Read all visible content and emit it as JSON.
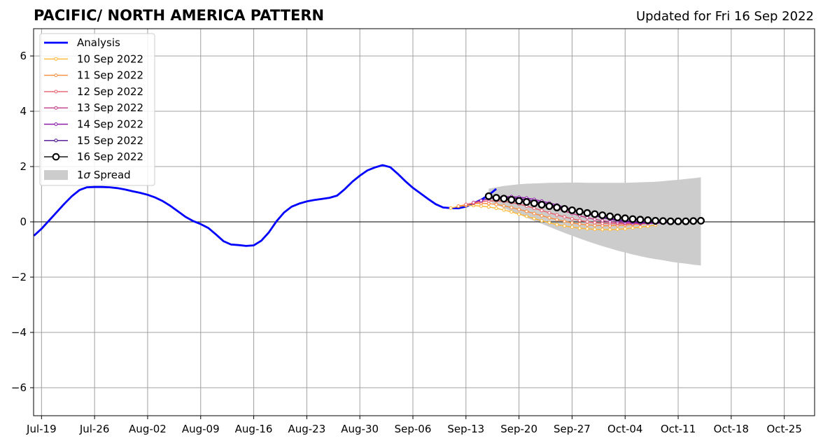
{
  "chart_data": {
    "type": "line",
    "title": "PACIFIC/ NORTH AMERICA PATTERN",
    "subtitle": "Updated for Fri 16 Sep 2022",
    "xlabel": "",
    "ylabel": "",
    "xlim": [
      "2022-07-18",
      "2022-10-29"
    ],
    "ylim": [
      -7,
      7
    ],
    "x_ticks": [
      "Jul-19",
      "Jul-26",
      "Aug-02",
      "Aug-09",
      "Aug-16",
      "Aug-23",
      "Aug-30",
      "Sep-06",
      "Sep-13",
      "Sep-20",
      "Sep-27",
      "Oct-04",
      "Oct-11",
      "Oct-18",
      "Oct-25"
    ],
    "y_ticks": [
      "6",
      "4",
      "2",
      "0",
      "−2",
      "−4",
      "−6"
    ],
    "grid": true,
    "legend_position": "top-left",
    "spread_label_prefix": "1",
    "spread_label_sigma": "σ",
    "spread_label_suffix": " Spread",
    "analysis": {
      "name": "Analysis",
      "color": "#0000ff",
      "start": "2022-07-18",
      "values": [
        -0.5,
        -0.25,
        0.05,
        0.35,
        0.65,
        0.93,
        1.15,
        1.25,
        1.26,
        1.26,
        1.25,
        1.22,
        1.17,
        1.11,
        1.05,
        0.98,
        0.88,
        0.75,
        0.58,
        0.38,
        0.18,
        0.03,
        -0.08,
        -0.22,
        -0.45,
        -0.7,
        -0.82,
        -0.84,
        -0.87,
        -0.85,
        -0.68,
        -0.38,
        0.02,
        0.34,
        0.55,
        0.66,
        0.74,
        0.79,
        0.83,
        0.87,
        0.95,
        1.18,
        1.45,
        1.67,
        1.86,
        1.97,
        2.05,
        1.98,
        1.74,
        1.47,
        1.23,
        1.03,
        0.83,
        0.64,
        0.52,
        0.5,
        0.49,
        0.55,
        0.67,
        0.8,
        0.97,
        1.19
      ]
    },
    "forecasts": [
      {
        "name": "10 Sep 2022",
        "color": "#ffb733",
        "start": "2022-09-11",
        "values": [
          0.5,
          0.56,
          0.59,
          0.59,
          0.57,
          0.54,
          0.49,
          0.43,
          0.36,
          0.28,
          0.2,
          0.12,
          0.04,
          -0.03,
          -0.1,
          -0.15,
          -0.19,
          -0.23,
          -0.25,
          -0.27,
          -0.28,
          -0.28,
          -0.27,
          -0.25,
          -0.22,
          -0.19,
          -0.16,
          -0.12
        ]
      },
      {
        "name": "11 Sep 2022",
        "color": "#fb8c3c",
        "start": "2022-09-12",
        "values": [
          0.57,
          0.62,
          0.66,
          0.67,
          0.66,
          0.63,
          0.58,
          0.52,
          0.45,
          0.38,
          0.3,
          0.22,
          0.15,
          0.08,
          0.02,
          -0.04,
          -0.08,
          -0.11,
          -0.13,
          -0.14,
          -0.14,
          -0.13,
          -0.12,
          -0.1,
          -0.08,
          -0.06,
          -0.04,
          -0.02
        ]
      },
      {
        "name": "12 Sep 2022",
        "color": "#e85f6d",
        "start": "2022-09-13",
        "values": [
          0.63,
          0.68,
          0.73,
          0.76,
          0.76,
          0.74,
          0.7,
          0.64,
          0.57,
          0.49,
          0.41,
          0.33,
          0.25,
          0.18,
          0.11,
          0.05,
          0.0,
          -0.03,
          -0.05,
          -0.06,
          -0.07,
          -0.07,
          -0.06,
          -0.05,
          -0.04,
          -0.03,
          -0.02,
          -0.01
        ]
      },
      {
        "name": "13 Sep 2022",
        "color": "#c43a87",
        "start": "2022-09-14",
        "values": [
          0.7,
          0.77,
          0.83,
          0.87,
          0.88,
          0.87,
          0.84,
          0.79,
          0.73,
          0.65,
          0.57,
          0.48,
          0.39,
          0.3,
          0.22,
          0.15,
          0.09,
          0.04,
          0.0,
          -0.03,
          -0.05,
          -0.06,
          -0.06,
          -0.05,
          -0.04,
          -0.03,
          -0.02,
          -0.01
        ]
      },
      {
        "name": "14 Sep 2022",
        "color": "#8c1bab",
        "start": "2022-09-15",
        "values": [
          0.77,
          0.84,
          0.89,
          0.91,
          0.91,
          0.89,
          0.86,
          0.81,
          0.75,
          0.68,
          0.61,
          0.53,
          0.45,
          0.37,
          0.29,
          0.22,
          0.15,
          0.09,
          0.04,
          0.0,
          -0.02,
          -0.04,
          -0.05,
          -0.05,
          -0.04,
          -0.03,
          -0.02,
          -0.01
        ]
      },
      {
        "name": "15 Sep 2022",
        "color": "#4a0c8f",
        "start": "2022-09-16",
        "values": [
          0.85,
          0.87,
          0.88,
          0.87,
          0.84,
          0.8,
          0.75,
          0.69,
          0.63,
          0.56,
          0.49,
          0.42,
          0.35,
          0.29,
          0.23,
          0.17,
          0.12,
          0.08,
          0.04,
          0.01,
          -0.01,
          -0.02,
          -0.03,
          -0.03,
          -0.02,
          -0.01,
          0.0,
          0.0
        ]
      }
    ],
    "current": {
      "name": "16 Sep 2022",
      "color": "#000000",
      "start": "2022-09-16",
      "values": [
        0.93,
        0.87,
        0.84,
        0.8,
        0.76,
        0.72,
        0.67,
        0.62,
        0.57,
        0.52,
        0.47,
        0.42,
        0.37,
        0.32,
        0.28,
        0.24,
        0.2,
        0.16,
        0.13,
        0.1,
        0.08,
        0.06,
        0.04,
        0.03,
        0.02,
        0.02,
        0.02,
        0.03,
        0.04
      ]
    },
    "spread": {
      "color": "#cccccc",
      "start": "2022-09-16",
      "upper": [
        1.2,
        1.25,
        1.3,
        1.33,
        1.36,
        1.38,
        1.39,
        1.4,
        1.41,
        1.41,
        1.42,
        1.42,
        1.42,
        1.41,
        1.41,
        1.41,
        1.41,
        1.41,
        1.41,
        1.42,
        1.43,
        1.44,
        1.45,
        1.47,
        1.5,
        1.52,
        1.55,
        1.58,
        1.61
      ],
      "lower": [
        0.75,
        0.62,
        0.5,
        0.38,
        0.27,
        0.15,
        0.04,
        -0.07,
        -0.18,
        -0.29,
        -0.4,
        -0.5,
        -0.6,
        -0.7,
        -0.79,
        -0.88,
        -0.96,
        -1.04,
        -1.11,
        -1.18,
        -1.24,
        -1.3,
        -1.35,
        -1.39,
        -1.44,
        -1.48,
        -1.51,
        -1.55,
        -1.58
      ]
    }
  }
}
